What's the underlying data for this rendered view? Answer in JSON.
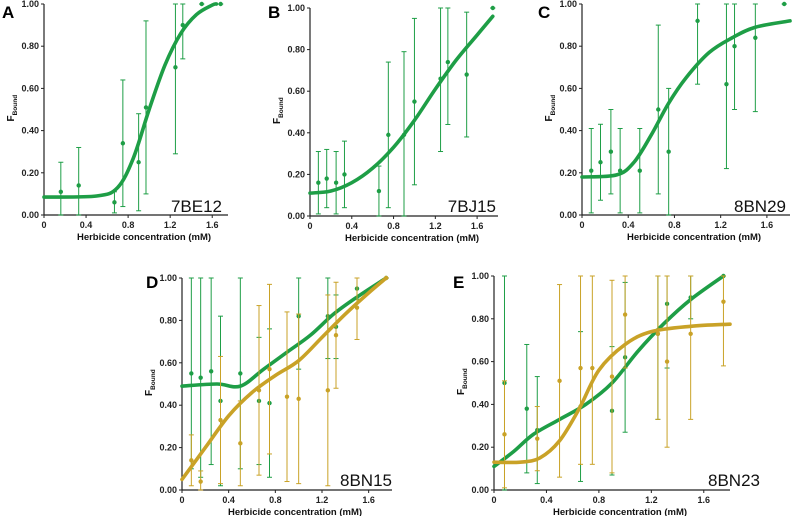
{
  "colors": {
    "green": "#1e9e46",
    "gold": "#c9a227",
    "axis": "#222222"
  },
  "chart_data": [
    {
      "type": "scatter",
      "panel": "A",
      "sample": "7BE12",
      "xlabel": "Herbicide concentration (mM)",
      "ylabel_main": "F",
      "ylabel_sub": "Bound",
      "xlim": [
        0,
        1.75
      ],
      "ylim": [
        0,
        1.0
      ],
      "xticks": [
        0,
        0.4,
        0.8,
        1.2,
        1.6
      ],
      "xtick_labels": [
        "0",
        "0.4",
        "0.8",
        "1.2",
        "1.6"
      ],
      "yticks": [
        0,
        0.2,
        0.4,
        0.6,
        0.8,
        1.0
      ],
      "ytick_labels": [
        "0.00",
        "0.20",
        "0.40",
        "0.60",
        "0.80",
        "1.00"
      ],
      "series": [
        {
          "color": "green",
          "points": [
            [
              0.16,
              0.11,
              0.14
            ],
            [
              0.33,
              0.14,
              0.18
            ],
            [
              0.67,
              0.06,
              0.05
            ],
            [
              0.75,
              0.34,
              0.3
            ],
            [
              0.9,
              0.25,
              0.23
            ],
            [
              0.97,
              0.51,
              0.41
            ],
            [
              1.25,
              0.7,
              0.41
            ],
            [
              1.32,
              0.9,
              0.16
            ],
            [
              1.5,
              1.0,
              0.0
            ],
            [
              1.68,
              1.0,
              0.0
            ]
          ],
          "fit": [
            [
              0,
              0.085
            ],
            [
              0.5,
              0.09
            ],
            [
              0.7,
              0.13
            ],
            [
              0.85,
              0.27
            ],
            [
              1.0,
              0.5
            ],
            [
              1.15,
              0.71
            ],
            [
              1.3,
              0.86
            ],
            [
              1.45,
              0.95
            ],
            [
              1.6,
              0.995
            ],
            [
              1.64,
              1.0
            ]
          ]
        }
      ]
    },
    {
      "type": "scatter",
      "panel": "B",
      "sample": "7BJ15",
      "xlabel": "Herbicide concentration (mM)",
      "ylabel_main": "F",
      "ylabel_sub": "Bound",
      "xlim": [
        0,
        1.8
      ],
      "ylim": [
        0,
        1.0
      ],
      "xticks": [
        0,
        0.4,
        0.8,
        1.2,
        1.6
      ],
      "xtick_labels": [
        "0",
        "0.4",
        "0.8",
        "1.2",
        "1.6"
      ],
      "yticks": [
        0,
        0.2,
        0.4,
        0.6,
        0.8,
        1.0
      ],
      "ytick_labels": [
        "0.00",
        "0.20",
        "0.40",
        "0.60",
        "0.80",
        "1.00"
      ],
      "series": [
        {
          "color": "green",
          "points": [
            [
              0.08,
              0.16,
              0.15
            ],
            [
              0.16,
              0.18,
              0.14
            ],
            [
              0.25,
              0.16,
              0.15
            ],
            [
              0.33,
              0.2,
              0.16
            ],
            [
              0.66,
              0.12,
              0.12
            ],
            [
              0.75,
              0.39,
              0.35
            ],
            [
              0.9,
              0.39,
              0.4
            ],
            [
              1.0,
              0.55,
              0.4
            ],
            [
              1.25,
              0.66,
              0.35
            ],
            [
              1.32,
              0.74,
              0.3
            ],
            [
              1.5,
              0.68,
              0.3
            ],
            [
              1.75,
              1.0,
              0.0
            ]
          ],
          "fit": [
            [
              0,
              0.11
            ],
            [
              0.2,
              0.12
            ],
            [
              0.4,
              0.16
            ],
            [
              0.6,
              0.23
            ],
            [
              0.8,
              0.33
            ],
            [
              1.0,
              0.46
            ],
            [
              1.2,
              0.61
            ],
            [
              1.4,
              0.75
            ],
            [
              1.6,
              0.87
            ],
            [
              1.75,
              0.96
            ]
          ]
        }
      ]
    },
    {
      "type": "scatter",
      "panel": "C",
      "sample": "8BN29",
      "xlabel": "Herbicide concentration (mM)",
      "ylabel_main": "F",
      "ylabel_sub": "Bound",
      "xlim": [
        0,
        1.8
      ],
      "ylim": [
        0,
        1.0
      ],
      "xticks": [
        0,
        0.4,
        0.8,
        1.2,
        1.6
      ],
      "xtick_labels": [
        "0",
        "0.4",
        "0.8",
        "1.2",
        "1.6"
      ],
      "yticks": [
        0,
        0.2,
        0.4,
        0.6,
        0.8,
        1.0
      ],
      "ytick_labels": [
        "0.00",
        "0.20",
        "0.40",
        "0.60",
        "0.80",
        "1.00"
      ],
      "series": [
        {
          "color": "green",
          "points": [
            [
              0.08,
              0.21,
              0.2
            ],
            [
              0.16,
              0.25,
              0.18
            ],
            [
              0.25,
              0.3,
              0.2
            ],
            [
              0.33,
              0.21,
              0.2
            ],
            [
              0.5,
              0.21,
              0.2
            ],
            [
              0.66,
              0.5,
              0.4
            ],
            [
              0.75,
              0.3,
              0.3
            ],
            [
              1.0,
              0.92,
              0.3
            ],
            [
              1.25,
              0.62,
              0.4
            ],
            [
              1.32,
              0.8,
              0.3
            ],
            [
              1.5,
              0.84,
              0.35
            ],
            [
              1.75,
              1.0,
              0.0
            ]
          ],
          "fit": [
            [
              0,
              0.18
            ],
            [
              0.3,
              0.19
            ],
            [
              0.45,
              0.25
            ],
            [
              0.6,
              0.38
            ],
            [
              0.75,
              0.53
            ],
            [
              0.9,
              0.65
            ],
            [
              1.1,
              0.77
            ],
            [
              1.3,
              0.84
            ],
            [
              1.5,
              0.89
            ],
            [
              1.8,
              0.92
            ]
          ]
        }
      ]
    },
    {
      "type": "scatter",
      "panel": "D",
      "sample": "8BN15",
      "xlabel": "Herbicide concentration (mM)",
      "ylabel_main": "F",
      "ylabel_sub": "Bound",
      "xlim": [
        0,
        1.8
      ],
      "ylim": [
        0,
        1.0
      ],
      "xticks": [
        0,
        0.4,
        0.8,
        1.2,
        1.6
      ],
      "xtick_labels": [
        "0",
        "0.4",
        "0.8",
        "1.2",
        "1.6"
      ],
      "yticks": [
        0,
        0.2,
        0.4,
        0.6,
        0.8,
        1.0
      ],
      "ytick_labels": [
        "0.00",
        "0.20",
        "0.40",
        "0.60",
        "0.80",
        "1.00"
      ],
      "series": [
        {
          "color": "green",
          "points": [
            [
              0.08,
              0.55,
              0.45
            ],
            [
              0.16,
              0.53,
              0.47
            ],
            [
              0.25,
              0.56,
              0.44
            ],
            [
              0.33,
              0.42,
              0.4
            ],
            [
              0.5,
              0.55,
              0.45
            ],
            [
              0.66,
              0.42,
              0.3
            ],
            [
              0.75,
              0.41,
              0.35
            ],
            [
              1.0,
              0.82,
              0.25
            ],
            [
              1.25,
              0.82,
              0.2
            ],
            [
              1.32,
              0.77,
              0.15
            ],
            [
              1.5,
              0.95,
              0.05
            ],
            [
              1.75,
              1.0,
              0.0
            ]
          ],
          "fit": [
            [
              0,
              0.49
            ],
            [
              0.3,
              0.5
            ],
            [
              0.5,
              0.49
            ],
            [
              0.7,
              0.57
            ],
            [
              0.9,
              0.65
            ],
            [
              1.1,
              0.73
            ],
            [
              1.3,
              0.83
            ],
            [
              1.5,
              0.91
            ],
            [
              1.75,
              1.0
            ]
          ]
        },
        {
          "color": "gold",
          "points": [
            [
              0.08,
              0.14,
              0.12
            ],
            [
              0.16,
              0.04,
              0.05
            ],
            [
              0.33,
              0.33,
              0.3
            ],
            [
              0.5,
              0.22,
              0.2
            ],
            [
              0.66,
              0.47,
              0.4
            ],
            [
              0.75,
              0.57,
              0.4
            ],
            [
              0.9,
              0.44,
              0.4
            ],
            [
              1.0,
              0.43,
              0.4
            ],
            [
              1.25,
              0.47,
              0.45
            ],
            [
              1.32,
              0.73,
              0.25
            ],
            [
              1.5,
              0.86,
              0.15
            ],
            [
              1.75,
              1.0,
              0.0
            ]
          ],
          "fit": [
            [
              0,
              0.05
            ],
            [
              0.2,
              0.2
            ],
            [
              0.4,
              0.35
            ],
            [
              0.6,
              0.46
            ],
            [
              0.8,
              0.54
            ],
            [
              1.0,
              0.61
            ],
            [
              1.2,
              0.72
            ],
            [
              1.4,
              0.83
            ],
            [
              1.6,
              0.93
            ],
            [
              1.75,
              1.0
            ]
          ]
        }
      ]
    },
    {
      "type": "scatter",
      "panel": "E",
      "sample": "8BN23",
      "xlabel": "Herbicide concentration (mM)",
      "ylabel_main": "F",
      "ylabel_sub": "Bound",
      "xlim": [
        0,
        1.8
      ],
      "ylim": [
        0,
        1.0
      ],
      "xticks": [
        0,
        0.4,
        0.8,
        1.2,
        1.6
      ],
      "xtick_labels": [
        "0",
        "0.4",
        "0.8",
        "1.2",
        "1.6"
      ],
      "yticks": [
        0,
        0.2,
        0.4,
        0.6,
        0.8,
        1.0
      ],
      "ytick_labels": [
        "0.00",
        "0.20",
        "0.40",
        "0.60",
        "0.80",
        "1.00"
      ],
      "series": [
        {
          "color": "green",
          "points": [
            [
              0.08,
              0.5,
              0.5
            ],
            [
              0.25,
              0.38,
              0.3
            ],
            [
              0.33,
              0.28,
              0.25
            ],
            [
              0.66,
              0.39,
              0.35
            ],
            [
              0.9,
              0.37,
              0.3
            ],
            [
              1.0,
              0.62,
              0.35
            ],
            [
              1.25,
              0.73,
              0.4
            ],
            [
              1.32,
              0.87,
              0.3
            ],
            [
              1.5,
              0.9,
              0.1
            ],
            [
              1.75,
              1.0,
              0.0
            ]
          ],
          "fit": [
            [
              0,
              0.11
            ],
            [
              0.15,
              0.18
            ],
            [
              0.3,
              0.26
            ],
            [
              0.5,
              0.33
            ],
            [
              0.7,
              0.4
            ],
            [
              0.9,
              0.5
            ],
            [
              1.1,
              0.65
            ],
            [
              1.3,
              0.78
            ],
            [
              1.5,
              0.89
            ],
            [
              1.75,
              1.0
            ]
          ]
        },
        {
          "color": "gold",
          "points": [
            [
              0.08,
              0.26,
              0.25
            ],
            [
              0.33,
              0.24,
              0.15
            ],
            [
              0.5,
              0.51,
              0.45
            ],
            [
              0.66,
              0.57,
              0.45
            ],
            [
              0.75,
              0.57,
              0.45
            ],
            [
              0.9,
              0.53,
              0.45
            ],
            [
              1.0,
              0.82,
              0.25
            ],
            [
              1.25,
              0.73,
              0.4
            ],
            [
              1.32,
              0.6,
              0.4
            ],
            [
              1.5,
              0.73,
              0.4
            ],
            [
              1.75,
              0.88,
              0.3
            ]
          ],
          "fit": [
            [
              0,
              0.13
            ],
            [
              0.2,
              0.13
            ],
            [
              0.35,
              0.15
            ],
            [
              0.5,
              0.23
            ],
            [
              0.65,
              0.38
            ],
            [
              0.8,
              0.56
            ],
            [
              1.0,
              0.68
            ],
            [
              1.2,
              0.74
            ],
            [
              1.5,
              0.765
            ],
            [
              1.8,
              0.775
            ]
          ]
        }
      ]
    }
  ]
}
